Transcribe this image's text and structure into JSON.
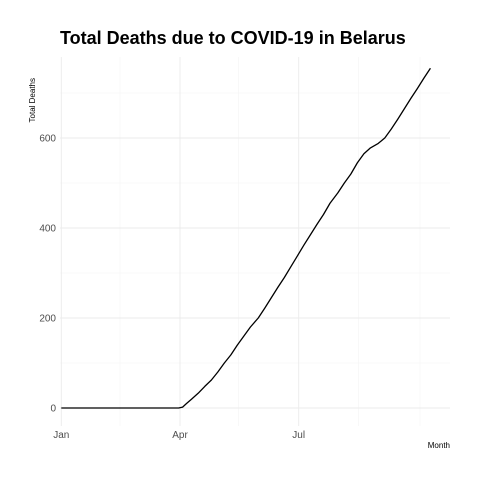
{
  "chart_data": {
    "type": "line",
    "title": "Total Deaths due to COVID-19 in Belarus",
    "xlabel": "Month",
    "ylabel": "Total Deaths",
    "x_ticks": [
      "Jan",
      "Apr",
      "Jul"
    ],
    "y_ticks": [
      0,
      200,
      400,
      600
    ],
    "xlim": [
      "2019-12-31",
      "2020-10-25"
    ],
    "ylim": [
      -40,
      780
    ],
    "grid": true,
    "legend": "none",
    "series": [
      {
        "color": "#000000",
        "points": [
          [
            "2020-01-01",
            0
          ],
          [
            "2020-02-01",
            0
          ],
          [
            "2020-03-01",
            0
          ],
          [
            "2020-03-21",
            0
          ],
          [
            "2020-03-31",
            0
          ],
          [
            "2020-04-03",
            2
          ],
          [
            "2020-04-06",
            10
          ],
          [
            "2020-04-10",
            20
          ],
          [
            "2020-04-15",
            33
          ],
          [
            "2020-04-20",
            48
          ],
          [
            "2020-04-25",
            62
          ],
          [
            "2020-04-30",
            80
          ],
          [
            "2020-05-05",
            100
          ],
          [
            "2020-05-10",
            118
          ],
          [
            "2020-05-15",
            140
          ],
          [
            "2020-05-20",
            160
          ],
          [
            "2020-05-25",
            180
          ],
          [
            "2020-05-31",
            200
          ],
          [
            "2020-06-05",
            222
          ],
          [
            "2020-06-10",
            245
          ],
          [
            "2020-06-15",
            268
          ],
          [
            "2020-06-20",
            290
          ],
          [
            "2020-06-25",
            314
          ],
          [
            "2020-06-30",
            338
          ],
          [
            "2020-07-05",
            362
          ],
          [
            "2020-07-10",
            385
          ],
          [
            "2020-07-15",
            408
          ],
          [
            "2020-07-20",
            430
          ],
          [
            "2020-07-25",
            455
          ],
          [
            "2020-07-31",
            478
          ],
          [
            "2020-08-05",
            500
          ],
          [
            "2020-08-10",
            520
          ],
          [
            "2020-08-15",
            545
          ],
          [
            "2020-08-20",
            565
          ],
          [
            "2020-08-25",
            578
          ],
          [
            "2020-08-31",
            588
          ],
          [
            "2020-09-05",
            600
          ],
          [
            "2020-09-10",
            620
          ],
          [
            "2020-09-15",
            642
          ],
          [
            "2020-09-20",
            665
          ],
          [
            "2020-09-25",
            688
          ],
          [
            "2020-09-30",
            710
          ],
          [
            "2020-10-05",
            733
          ],
          [
            "2020-10-10",
            755
          ]
        ]
      }
    ]
  }
}
